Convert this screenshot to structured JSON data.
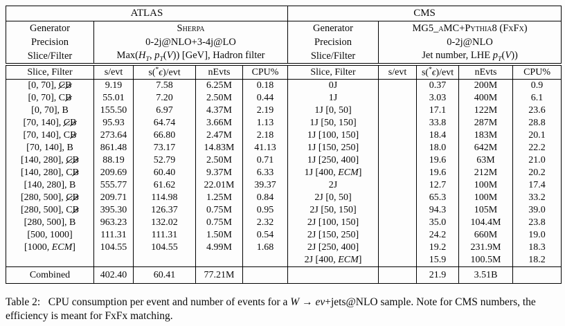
{
  "table": {
    "atlas_title": "ATLAS",
    "cms_title": "CMS",
    "meta": [
      {
        "a_label": "Generator",
        "a_value": "<span class='sc'>Sherpa</span>",
        "c_label": "Generator",
        "c_value": "MG5_<span class='sc'>a</span>MC+<span class='sc'>Pythia</span>8 (<span class='sc'>FxFx</span>)"
      },
      {
        "a_label": "Precision",
        "a_value": "0-2j@NLO+3-4j@LO",
        "c_label": "Precision",
        "c_value": "0-2j@NLO"
      },
      {
        "a_label": "Slice/Filter",
        "a_value": "Max(<i>H<sub>T</sub></i>, <i>p<sub>T</sub></i>(<i>V</i>)) [GeV], Hadron filter",
        "c_label": "Slice/Filter",
        "c_value": "Jet number, LHE <i>p<sub>T</sub></i>(<i>V</i>))"
      }
    ],
    "columns": [
      "Slice, Filter",
      "s/evt",
      "s(<sup>*</sup><i>ϵ</i>)/evt",
      "nEvts",
      "CPU%"
    ],
    "rows": [
      [
        "[0, 70], <span class='sl'>C</span><span class='sl'>B</span>",
        "9.19",
        "7.58",
        "6.25M",
        "0.18",
        "0J",
        "",
        "0.37",
        "200M",
        "0.9"
      ],
      [
        "[0, 70], C<span class='sl'>B</span>",
        "55.01",
        "7.20",
        "2.50M",
        "0.44",
        "1J",
        "",
        "3.03",
        "400M",
        "6.1"
      ],
      [
        "[0, 70], B",
        "155.50",
        "6.97",
        "4.37M",
        "2.19",
        "1J [0, 50]",
        "",
        "17.1",
        "122M",
        "23.6"
      ],
      [
        "[70, 140], <span class='sl'>C</span><span class='sl'>B</span>",
        "95.93",
        "64.74",
        "3.66M",
        "1.13",
        "1J [50, 150]",
        "",
        "33.8",
        "287M",
        "28.8"
      ],
      [
        "[70, 140], C<span class='sl'>B</span>",
        "273.64",
        "66.80",
        "2.47M",
        "2.18",
        "1J [100, 150]",
        "",
        "18.4",
        "183M",
        "20.1"
      ],
      [
        "[70, 140], B",
        "861.48",
        "73.17",
        "14.83M",
        "41.13",
        "1J [150, 250]",
        "",
        "18.0",
        "642M",
        "22.2"
      ],
      [
        "[140, 280], <span class='sl'>C</span><span class='sl'>B</span>",
        "88.19",
        "52.79",
        "2.50M",
        "0.71",
        "1J [250, 400]",
        "",
        "19.6",
        "63M",
        "21.0"
      ],
      [
        "[140, 280], C<span class='sl'>B</span>",
        "209.69",
        "60.40",
        "9.37M",
        "6.33",
        "1J [400, <i>ECM</i>]",
        "",
        "19.6",
        "212M",
        "20.2"
      ],
      [
        "[140, 280], B",
        "555.77",
        "61.62",
        "22.01M",
        "39.37",
        "2J",
        "",
        "12.7",
        "100M",
        "17.4"
      ],
      [
        "[280, 500], <span class='sl'>C</span><span class='sl'>B</span>",
        "209.71",
        "114.98",
        "1.25M",
        "0.84",
        "2J [0, 50]",
        "",
        "65.3",
        "100M",
        "33.2"
      ],
      [
        "[280, 500], C<span class='sl'>B</span>",
        "395.30",
        "126.37",
        "0.75M",
        "0.95",
        "2J [50, 150]",
        "",
        "94.3",
        "105M",
        "39.0"
      ],
      [
        "[280, 500], B",
        "963.23",
        "132.02",
        "0.75M",
        "2.32",
        "2J [100, 150]",
        "",
        "35.0",
        "104.4M",
        "23.8"
      ],
      [
        "[500, 1000]",
        "111.31",
        "111.31",
        "1.50M",
        "0.54",
        "2J [150, 250]",
        "",
        "24.2",
        "660M",
        "19.0"
      ],
      [
        "[1000, <i>ECM</i>]",
        "104.55",
        "104.55",
        "4.99M",
        "1.68",
        "2J [250, 400]",
        "",
        "19.2",
        "231.9M",
        "18.3"
      ],
      [
        "",
        "",
        "",
        "",
        "",
        "2J [400, <i>ECM</i>]",
        "",
        "15.9",
        "100.5M",
        "18.2"
      ]
    ],
    "combined": [
      "Combined",
      "402.40",
      "60.41",
      "77.21M",
      "",
      "",
      "",
      "21.9",
      "3.51B",
      ""
    ]
  },
  "caption": {
    "html": "Table 2:&nbsp;&nbsp; CPU consumption per event and number of events for a <i>W</i> → <i>eν</i>+jets@NLO sample. Note for CMS numbers, the efficiency is meant for FxFx matching."
  }
}
